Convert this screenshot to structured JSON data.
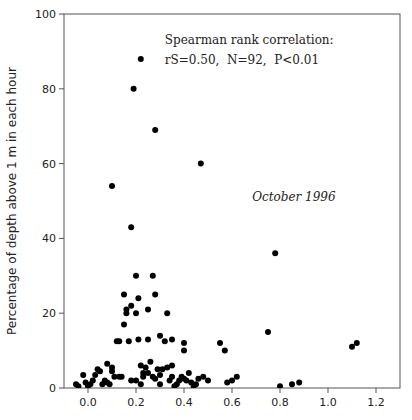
{
  "chart_data": {
    "type": "scatter",
    "ylabel": "Percentage of depth above 1 m in each hour",
    "annotations": [
      "Spearman rank correlation:",
      "rS=0.50,  N=92,  P<0.01",
      "October 1996"
    ],
    "x": [
      -0.05,
      -0.04,
      -0.02,
      -0.01,
      0.0,
      0.01,
      0.02,
      0.03,
      0.04,
      0.05,
      0.06,
      0.07,
      0.08,
      0.09,
      0.1,
      0.1,
      0.11,
      0.12,
      0.13,
      0.14,
      0.15,
      0.15,
      0.16,
      0.17,
      0.18,
      0.18,
      0.19,
      0.2,
      0.2,
      0.21,
      0.21,
      0.22,
      0.22,
      0.23,
      0.23,
      0.24,
      0.25,
      0.25,
      0.26,
      0.27,
      0.27,
      0.28,
      0.28,
      0.29,
      0.3,
      0.3,
      0.31,
      0.32,
      0.33,
      0.33,
      0.34,
      0.35,
      0.35,
      0.36,
      0.37,
      0.38,
      0.39,
      0.4,
      0.4,
      0.41,
      0.42,
      0.43,
      0.44,
      0.45,
      0.46,
      0.47,
      0.48,
      0.5,
      0.55,
      0.57,
      0.58,
      0.6,
      0.62,
      0.75,
      0.78,
      0.8,
      0.85,
      0.88,
      1.1,
      1.12,
      0.13,
      0.1,
      0.08,
      0.2,
      0.3,
      0.25,
      0.35,
      0.4,
      0.18,
      0.22,
      0.16,
      0.28
    ],
    "values": [
      1.0,
      0.5,
      3.5,
      1.5,
      0.5,
      1.0,
      2.0,
      3.5,
      5.0,
      4.5,
      1.0,
      2.0,
      1.5,
      1.0,
      4.5,
      54.0,
      3.0,
      12.5,
      12.5,
      3.0,
      17.0,
      25.0,
      20.0,
      12.5,
      43.0,
      22.0,
      80.0,
      20.0,
      30.0,
      24.0,
      13.0,
      88.0,
      6.0,
      3.0,
      4.0,
      5.5,
      13.0,
      21.0,
      7.0,
      3.0,
      30.0,
      69.0,
      2.5,
      5.0,
      3.5,
      14.0,
      5.0,
      12.5,
      5.5,
      20.0,
      2.0,
      13.0,
      6.0,
      0.5,
      1.0,
      2.0,
      3.0,
      12.0,
      10.0,
      2.0,
      4.0,
      1.5,
      0.5,
      1.0,
      2.5,
      60.0,
      3.0,
      2.0,
      12.0,
      10.0,
      1.5,
      2.0,
      3.0,
      15.0,
      36.0,
      0.5,
      1.0,
      1.5,
      11.0,
      12.0,
      3.0,
      5.5,
      6.5,
      2.0,
      1.0,
      4.0,
      3.0,
      2.5,
      2.0,
      1.0,
      21.0,
      25.0
    ],
    "color": "black",
    "marker": "circle",
    "xlim": [
      -0.1,
      1.3
    ],
    "ylim": [
      0,
      100
    ],
    "xticks": [
      {
        "value": 0,
        "label": "0.0"
      },
      0.2,
      0.4,
      0.6,
      0.8,
      {
        "value": 1.0,
        "label": "1.0"
      },
      1.2
    ],
    "yticks": [
      0,
      20,
      40,
      60,
      80,
      100
    ]
  }
}
